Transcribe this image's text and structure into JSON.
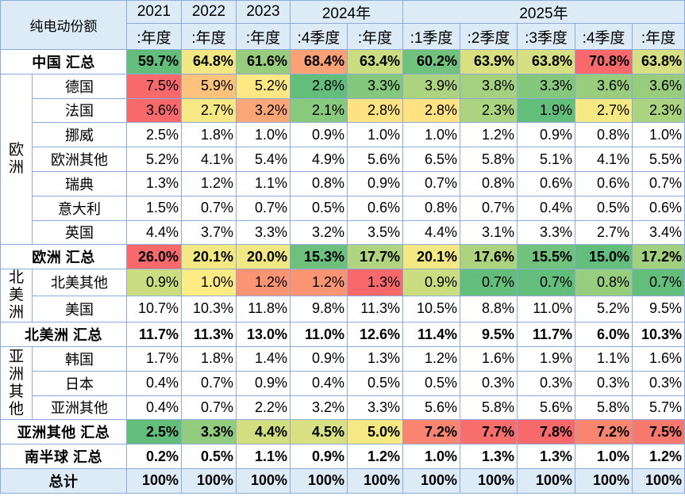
{
  "corner_label": "纯电动份额",
  "colors": {
    "header_bg": "#ddebf7",
    "border": "#8eaadb",
    "scale_low": "#63be7b",
    "scale_mid": "#ffeb84",
    "scale_high": "#f8696b"
  },
  "column_groups": [
    {
      "label": "2021",
      "span": 1
    },
    {
      "label": "2022",
      "span": 1
    },
    {
      "label": "2023",
      "span": 1
    },
    {
      "label": "2024年",
      "span": 2
    },
    {
      "label": "2025年",
      "span": 5
    }
  ],
  "columns": [
    ":年度",
    ":年度",
    ":年度",
    ":4季度",
    ":年度",
    ":1季度",
    ":2季度",
    ":3季度",
    ":4季度",
    ":年度"
  ],
  "chart_data": {
    "type": "table",
    "row_groups": [
      {
        "group": "",
        "rows": [
          {
            "name": "中国 汇总",
            "total": true,
            "colored": true,
            "values": [
              "59.7%",
              "64.8%",
              "61.6%",
              "68.4%",
              "63.4%",
              "60.2%",
              "63.9%",
              "63.8%",
              "70.8%",
              "63.8%"
            ]
          }
        ]
      },
      {
        "group": "欧洲",
        "rows": [
          {
            "name": "德国",
            "colored": true,
            "values": [
              "7.5%",
              "5.9%",
              "5.2%",
              "2.8%",
              "3.3%",
              "3.9%",
              "3.8%",
              "3.3%",
              "3.6%",
              "3.6%"
            ]
          },
          {
            "name": "法国",
            "colored": true,
            "values": [
              "3.6%",
              "2.7%",
              "3.2%",
              "2.1%",
              "2.8%",
              "2.8%",
              "2.3%",
              "1.9%",
              "2.7%",
              "2.3%"
            ]
          },
          {
            "name": "挪威",
            "values": [
              "2.5%",
              "1.8%",
              "1.0%",
              "0.9%",
              "1.0%",
              "1.0%",
              "1.2%",
              "0.9%",
              "0.8%",
              "1.0%"
            ]
          },
          {
            "name": "欧洲其他",
            "values": [
              "5.2%",
              "4.1%",
              "5.4%",
              "4.9%",
              "5.6%",
              "6.5%",
              "5.8%",
              "5.1%",
              "4.1%",
              "5.5%"
            ]
          },
          {
            "name": "瑞典",
            "values": [
              "1.3%",
              "1.2%",
              "1.1%",
              "0.8%",
              "0.9%",
              "0.7%",
              "0.8%",
              "0.6%",
              "0.6%",
              "0.7%"
            ]
          },
          {
            "name": "意大利",
            "values": [
              "1.5%",
              "0.7%",
              "0.7%",
              "0.5%",
              "0.6%",
              "0.8%",
              "0.7%",
              "0.4%",
              "0.5%",
              "0.6%"
            ]
          },
          {
            "name": "英国",
            "values": [
              "4.4%",
              "3.7%",
              "3.3%",
              "3.2%",
              "3.5%",
              "4.4%",
              "3.1%",
              "3.3%",
              "2.7%",
              "3.4%"
            ]
          }
        ]
      },
      {
        "group": "",
        "rows": [
          {
            "name": "欧洲 汇总",
            "total": true,
            "colored": true,
            "values": [
              "26.0%",
              "20.1%",
              "20.0%",
              "15.3%",
              "17.7%",
              "20.1%",
              "17.6%",
              "15.5%",
              "15.0%",
              "17.2%"
            ]
          }
        ]
      },
      {
        "group": "北美洲",
        "rows": [
          {
            "name": "北美其他",
            "colored": true,
            "values": [
              "0.9%",
              "1.0%",
              "1.2%",
              "1.2%",
              "1.3%",
              "0.9%",
              "0.7%",
              "0.7%",
              "0.8%",
              "0.7%"
            ]
          },
          {
            "name": "美国",
            "values": [
              "10.7%",
              "10.3%",
              "11.8%",
              "9.8%",
              "11.3%",
              "10.5%",
              "8.8%",
              "11.0%",
              "5.2%",
              "9.5%"
            ]
          }
        ]
      },
      {
        "group": "",
        "rows": [
          {
            "name": "北美洲 汇总",
            "total": true,
            "values": [
              "11.7%",
              "11.3%",
              "13.0%",
              "11.0%",
              "12.6%",
              "11.4%",
              "9.5%",
              "11.7%",
              "6.0%",
              "10.3%"
            ]
          }
        ]
      },
      {
        "group": "亚洲其他",
        "rows": [
          {
            "name": "韩国",
            "values": [
              "1.7%",
              "1.8%",
              "1.4%",
              "0.9%",
              "1.3%",
              "1.2%",
              "1.6%",
              "1.9%",
              "1.1%",
              "1.6%"
            ]
          },
          {
            "name": "日本",
            "values": [
              "0.4%",
              "0.7%",
              "0.9%",
              "0.4%",
              "0.5%",
              "0.5%",
              "0.3%",
              "0.3%",
              "0.3%",
              "0.3%"
            ]
          },
          {
            "name": "亚洲其他",
            "values": [
              "0.4%",
              "0.7%",
              "2.2%",
              "3.2%",
              "3.3%",
              "5.6%",
              "5.8%",
              "5.6%",
              "5.8%",
              "5.7%"
            ]
          }
        ]
      },
      {
        "group": "",
        "rows": [
          {
            "name": "亚洲其他 汇总",
            "total": true,
            "colored": true,
            "values": [
              "2.5%",
              "3.3%",
              "4.4%",
              "4.5%",
              "5.0%",
              "7.2%",
              "7.7%",
              "7.8%",
              "7.2%",
              "7.5%"
            ]
          }
        ]
      },
      {
        "group": "",
        "rows": [
          {
            "name": "南半球 汇总",
            "total": true,
            "values": [
              "0.2%",
              "0.5%",
              "1.1%",
              "0.9%",
              "1.2%",
              "1.0%",
              "1.3%",
              "1.3%",
              "1.0%",
              "1.2%"
            ]
          }
        ]
      },
      {
        "group": "",
        "rows": [
          {
            "name": "总计",
            "total": true,
            "grand": true,
            "values": [
              "100%",
              "100%",
              "100%",
              "100%",
              "100%",
              "100%",
              "100%",
              "100%",
              "100%",
              "100%"
            ]
          }
        ]
      }
    ]
  }
}
